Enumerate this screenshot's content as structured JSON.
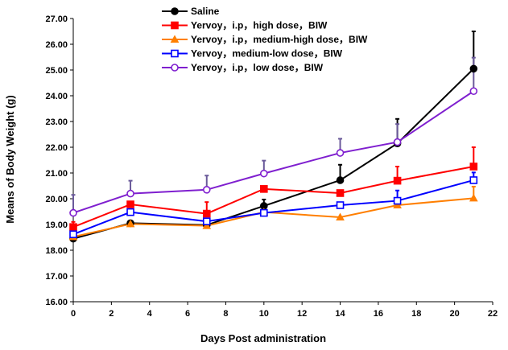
{
  "chart_data": {
    "type": "line",
    "title": "",
    "xlabel": "Days Post administration",
    "ylabel": "Means of Body Weight (g)",
    "xlim": [
      0,
      22
    ],
    "ylim": [
      16.0,
      27.0
    ],
    "x_ticks": [
      "0",
      "2",
      "4",
      "6",
      "8",
      "10",
      "12",
      "14",
      "16",
      "18",
      "20",
      "22"
    ],
    "y_ticks": [
      "16.00",
      "17.00",
      "18.00",
      "19.00",
      "20.00",
      "21.00",
      "22.00",
      "23.00",
      "24.00",
      "25.00",
      "26.00",
      "27.00"
    ],
    "grid": false,
    "legend_position": "top-center",
    "x": [
      0,
      3,
      7,
      10,
      14,
      17,
      21
    ],
    "series": [
      {
        "name": "Saline",
        "color": "#000000",
        "marker": "circle-filled",
        "values": [
          18.45,
          19.05,
          18.98,
          19.72,
          20.72,
          22.15,
          25.05
        ],
        "errors": [
          0.0,
          0.0,
          0.0,
          0.25,
          0.6,
          0.95,
          1.45
        ]
      },
      {
        "name": "Yervoy，i.p，high dose，BIW",
        "color": "#ff0000",
        "marker": "square-filled",
        "values": [
          18.9,
          19.78,
          19.42,
          20.38,
          20.22,
          20.7,
          21.25
        ],
        "errors": [
          0.2,
          0.0,
          0.45,
          0.0,
          0.0,
          0.55,
          0.75
        ]
      },
      {
        "name": "Yervoy，i.p，medium-high dose，BIW",
        "color": "#ff7f00",
        "marker": "triangle-filled",
        "values": [
          18.52,
          19.02,
          18.95,
          19.48,
          19.28,
          19.75,
          20.02
        ],
        "errors": [
          0.0,
          0.0,
          0.0,
          0.0,
          0.0,
          0.0,
          0.45
        ]
      },
      {
        "name": "Yervoy，medium-low dose，BIW",
        "color": "#0000ff",
        "marker": "square-open",
        "values": [
          18.62,
          19.48,
          19.12,
          19.45,
          19.75,
          19.92,
          20.72
        ],
        "errors": [
          0.0,
          0.0,
          0.0,
          0.0,
          0.0,
          0.4,
          0.3
        ]
      },
      {
        "name": "Yervoy，i.p，low dose，BIW",
        "color": "#7f1fcf",
        "marker": "circle-open",
        "values": [
          19.45,
          20.2,
          20.35,
          20.98,
          21.78,
          22.2,
          24.18
        ],
        "errors": [
          0.7,
          0.5,
          0.55,
          0.5,
          0.55,
          0.7,
          1.3
        ]
      }
    ]
  }
}
